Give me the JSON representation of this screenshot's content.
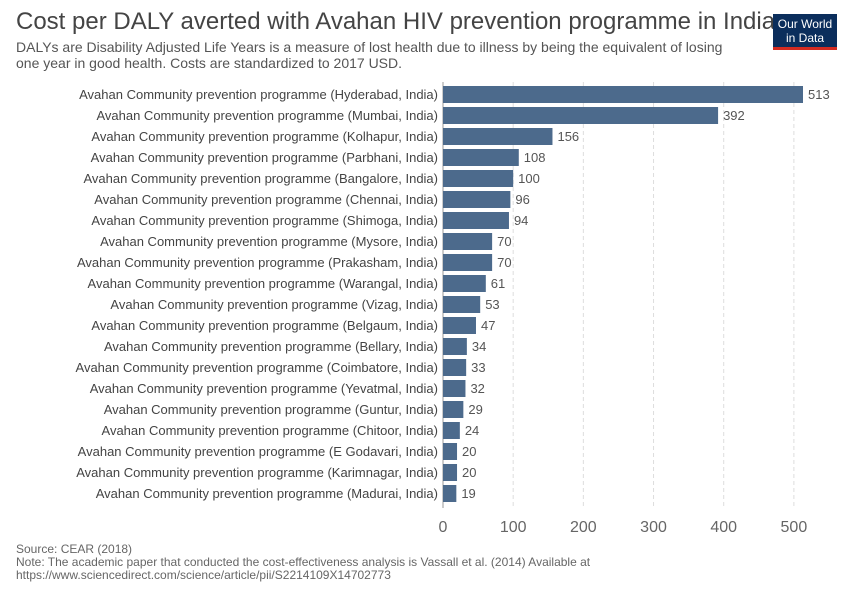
{
  "header": {
    "title": "Cost per DALY averted with Avahan HIV prevention programme in India",
    "subtitle": "DALYs are Disability Adjusted Life Years is a measure of lost health due to illness by being the equivalent of losing one year in good health. Costs are standardized to 2017 USD."
  },
  "logo": {
    "line1": "Our World",
    "line2": "in Data",
    "bg_color": "#0b2e5c",
    "accent_color": "#d42b21"
  },
  "footer": {
    "source": "Source: CEAR (2018)",
    "note_line1": "Note: The academic paper that conducted the cost-effectiveness analysis is Vassall et al. (2014) Available at",
    "note_line2": "https://www.sciencedirect.com/science/article/pii/S2214109X14702773"
  },
  "chart_data": {
    "type": "bar",
    "orientation": "horizontal",
    "bar_color": "#4c6a8c",
    "grid": true,
    "xlim": [
      0,
      513
    ],
    "xticks": [
      0,
      100,
      200,
      300,
      400,
      500
    ],
    "categories": [
      "Avahan Community prevention programme (Hyderabad, India)",
      "Avahan Community prevention programme (Mumbai, India)",
      "Avahan Community prevention programme (Kolhapur, India)",
      "Avahan Community prevention programme (Parbhani, India)",
      "Avahan Community prevention programme (Bangalore, India)",
      "Avahan Community prevention programme (Chennai, India)",
      "Avahan Community prevention programme (Shimoga, India)",
      "Avahan Community prevention programme (Mysore, India)",
      "Avahan Community prevention programme (Prakasham, India)",
      "Avahan Community prevention programme (Warangal, India)",
      "Avahan Community prevention programme (Vizag, India)",
      "Avahan Community prevention programme (Belgaum, India)",
      "Avahan Community prevention programme (Bellary, India)",
      "Avahan Community prevention programme (Coimbatore, India)",
      "Avahan Community prevention programme (Yevatmal, India)",
      "Avahan Community prevention programme (Guntur, India)",
      "Avahan Community prevention programme (Chitoor, India)",
      "Avahan Community prevention programme (E Godavari, India)",
      "Avahan Community prevention programme (Karimnagar, India)",
      "Avahan Community prevention programme (Madurai, India)"
    ],
    "values": [
      513,
      392,
      156,
      108,
      100,
      96,
      94,
      70,
      70,
      61,
      53,
      47,
      34,
      33,
      32,
      29,
      24,
      20,
      20,
      19
    ]
  }
}
